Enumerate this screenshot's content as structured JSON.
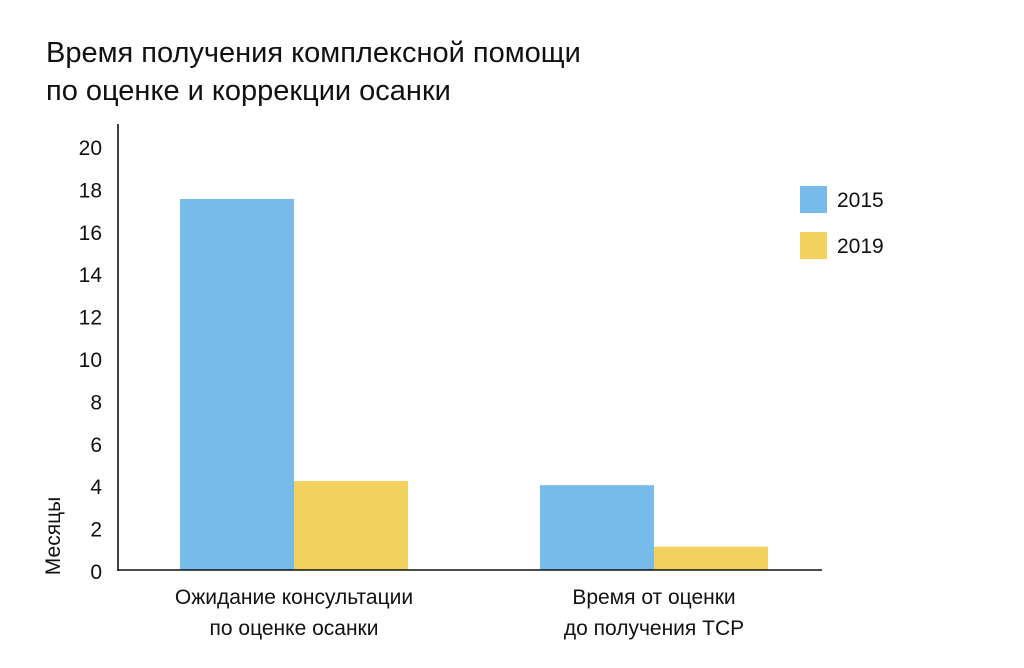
{
  "title_lines": [
    "Время получения комплексной помощи",
    "по оценке и коррекции осанки"
  ],
  "chart_data": {
    "type": "bar",
    "title": "Время получения комплексной помощи по оценке и коррекции осанки",
    "xlabel": "",
    "ylabel": "Месяцы",
    "ylim": [
      0,
      20
    ],
    "yticks": [
      0,
      2,
      4,
      6,
      8,
      10,
      12,
      14,
      16,
      18,
      20
    ],
    "grid": false,
    "legend_position": "right",
    "categories": [
      [
        "Ожидание консультации",
        "по оценке осанки"
      ],
      [
        "Время от оценки",
        "до получения ТСР"
      ]
    ],
    "series": [
      {
        "name": "2015",
        "color": "#77bbea",
        "values": [
          17.5,
          4.0
        ]
      },
      {
        "name": "2019",
        "color": "#f2d15f",
        "values": [
          4.2,
          1.1
        ]
      }
    ]
  }
}
